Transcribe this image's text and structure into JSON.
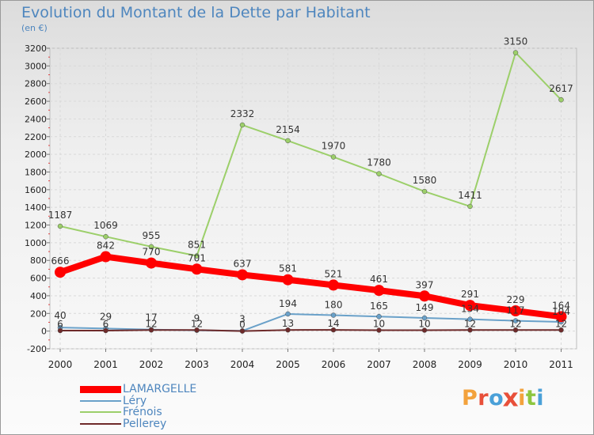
{
  "header": {
    "title": "Evolution du Montant de la Dette par Habitant",
    "unit": "(en €)"
  },
  "brand": {
    "letters": [
      "P",
      "r",
      "o",
      "x",
      "i",
      "t",
      "i"
    ],
    "colors": [
      "#f3a23c",
      "#e8503a",
      "#4aa0d8",
      "#e8503a",
      "#f3a23c",
      "#8dc63f",
      "#4aa0d8"
    ]
  },
  "chart_data": {
    "type": "line",
    "title": "Evolution du Montant de la Dette par Habitant",
    "ylabel": "(en €)",
    "xlabel": "",
    "x": [
      "2000",
      "2001",
      "2002",
      "2003",
      "2004",
      "2005",
      "2006",
      "2007",
      "2008",
      "2009",
      "2010",
      "2011"
    ],
    "ylim": [
      -200,
      3200
    ],
    "yticks": [
      "-200",
      "0",
      "200",
      "400",
      "600",
      "800",
      "1000",
      "1200",
      "1400",
      "1600",
      "1800",
      "2000",
      "2200",
      "2400",
      "2600",
      "2800",
      "3000",
      "3200"
    ],
    "grid": true,
    "series": [
      {
        "name": "LAMARGELLE",
        "color": "#ff0000",
        "width": 8,
        "values": [
          666,
          842,
          770,
          701,
          637,
          581,
          521,
          461,
          397,
          291,
          229,
          164
        ]
      },
      {
        "name": "Léry",
        "color": "#6aa1c9",
        "width": 2,
        "values": [
          40,
          29,
          17,
          9,
          3,
          194,
          180,
          165,
          149,
          134,
          117,
          104
        ]
      },
      {
        "name": "Frénois",
        "color": "#9ccf6a",
        "width": 2,
        "values": [
          1187,
          1069,
          955,
          851,
          2332,
          2154,
          1970,
          1780,
          1580,
          1411,
          3150,
          2617
        ]
      },
      {
        "name": "Pellerey",
        "color": "#6e2a2a",
        "width": 2,
        "values": [
          6,
          6,
          12,
          12,
          0,
          13,
          14,
          10,
          10,
          12,
          12,
          12
        ]
      }
    ],
    "legend_position": "bottom-left"
  }
}
